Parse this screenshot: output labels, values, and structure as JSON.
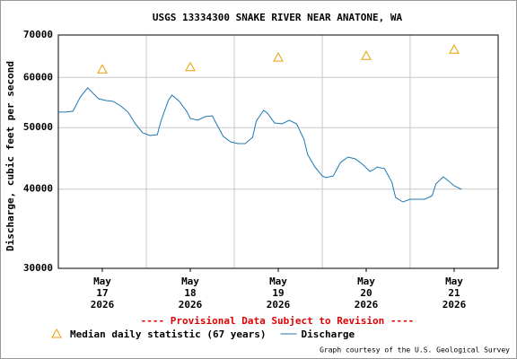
{
  "chart_data": {
    "type": "line",
    "title": "USGS 13334300 SNAKE RIVER NEAR ANATONE, WA",
    "y_label": "Discharge, cubic feet per second",
    "annotation": "---- Provisional Data Subject to Revision ----",
    "credit": "Graph courtesy of the U.S. Geological Survey",
    "log_y": true,
    "grid": true,
    "legend": "bottom",
    "ylim": [
      30000,
      70000
    ],
    "yticks": [
      30000,
      40000,
      50000,
      60000,
      70000
    ],
    "xlim": [
      "2026-05-16 12:00",
      "2026-05-21 12:00"
    ],
    "xticks": [
      {
        "value": "2026-05-17 00:00",
        "label": [
          "May",
          "17",
          "2026"
        ]
      },
      {
        "value": "2026-05-18 00:00",
        "label": [
          "May",
          "18",
          "2026"
        ]
      },
      {
        "value": "2026-05-19 00:00",
        "label": [
          "May",
          "19",
          "2026"
        ]
      },
      {
        "value": "2026-05-20 00:00",
        "label": [
          "May",
          "20",
          "2026"
        ]
      },
      {
        "value": "2026-05-21 00:00",
        "label": [
          "May",
          "21",
          "2026"
        ]
      }
    ],
    "x_grid_lines": [
      "2026-05-17 12:00",
      "2026-05-18 12:00",
      "2026-05-19 12:00",
      "2026-05-20 12:00",
      "2026-05-21 12:00"
    ],
    "series": [
      {
        "name": "Median daily statistic (67 years)",
        "color": "#e8a000",
        "marker": "triangle",
        "x": [
          "2026-05-17 00:00",
          "2026-05-18 00:00",
          "2026-05-19 00:00",
          "2026-05-20 00:00",
          "2026-05-21 00:00"
        ],
        "values": [
          61800,
          62300,
          64500,
          64900,
          66400
        ]
      },
      {
        "name": "Discharge",
        "color": "#1f77b4",
        "marker": "line",
        "x": [
          "2026-05-16 12:00",
          "2026-05-16 14:00",
          "2026-05-16 16:00",
          "2026-05-16 18:00",
          "2026-05-16 20:00",
          "2026-05-16 21:00",
          "2026-05-16 23:00",
          "2026-05-17 01:00",
          "2026-05-17 03:00",
          "2026-05-17 05:00",
          "2026-05-17 07:00",
          "2026-05-17 09:00",
          "2026-05-17 11:00",
          "2026-05-17 13:00",
          "2026-05-17 15:00",
          "2026-05-17 16:00",
          "2026-05-17 18:00",
          "2026-05-17 19:00",
          "2026-05-17 21:00",
          "2026-05-17 23:00",
          "2026-05-18 00:00",
          "2026-05-18 02:00",
          "2026-05-18 04:00",
          "2026-05-18 06:00",
          "2026-05-18 07:00",
          "2026-05-18 09:00",
          "2026-05-18 11:00",
          "2026-05-18 13:00",
          "2026-05-18 15:00",
          "2026-05-18 17:00",
          "2026-05-18 18:00",
          "2026-05-18 20:00",
          "2026-05-18 21:00",
          "2026-05-18 23:00",
          "2026-05-19 01:00",
          "2026-05-19 03:00",
          "2026-05-19 05:00",
          "2026-05-19 07:00",
          "2026-05-19 08:00",
          "2026-05-19 10:00",
          "2026-05-19 12:00",
          "2026-05-19 13:00",
          "2026-05-19 15:00",
          "2026-05-19 17:00",
          "2026-05-19 19:00",
          "2026-05-19 21:00",
          "2026-05-19 23:00",
          "2026-05-20 01:00",
          "2026-05-20 02:00",
          "2026-05-20 03:00",
          "2026-05-20 05:00",
          "2026-05-20 07:00",
          "2026-05-20 08:00",
          "2026-05-20 10:00",
          "2026-05-20 12:00",
          "2026-05-20 14:00",
          "2026-05-20 16:00",
          "2026-05-20 18:00",
          "2026-05-20 19:00",
          "2026-05-20 21:00",
          "2026-05-20 22:00",
          "2026-05-21 00:00",
          "2026-05-21 02:00"
        ],
        "values": [
          52900,
          52900,
          53080,
          55900,
          57770,
          57010,
          55540,
          55180,
          55000,
          54110,
          52900,
          50700,
          49070,
          48600,
          48750,
          51200,
          55180,
          56270,
          55000,
          53080,
          51700,
          51360,
          52040,
          52210,
          50870,
          48440,
          47500,
          47190,
          47190,
          48280,
          51200,
          53250,
          52730,
          50870,
          50700,
          51360,
          50700,
          47970,
          45380,
          43360,
          41970,
          41700,
          41970,
          44070,
          44940,
          44650,
          43780,
          42660,
          42940,
          43360,
          43080,
          41020,
          38810,
          38180,
          38560,
          38560,
          38560,
          39060,
          40750,
          41830,
          41420,
          40490,
          39960
        ]
      }
    ]
  }
}
